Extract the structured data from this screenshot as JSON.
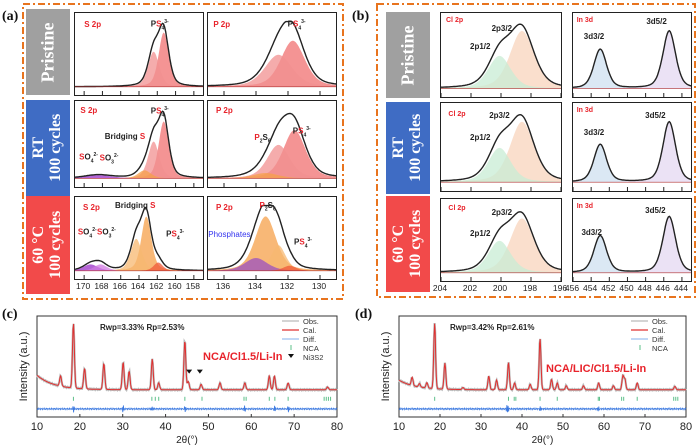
{
  "panels": {
    "a": {
      "letter": "(a)"
    },
    "b": {
      "letter": "(b)"
    },
    "c": {
      "letter": "(c)"
    },
    "d": {
      "letter": "(d)"
    }
  },
  "row_labels": [
    {
      "line1": "Pristine",
      "line2": "",
      "color": "#a0a0a0"
    },
    {
      "line1": "RT",
      "line2": "100 cycles",
      "color": "#3f6cc4"
    },
    {
      "line1": "60 °C",
      "line2": "100 cycles",
      "color": "#f24a4a"
    }
  ],
  "colors": {
    "accent_dash": "#e8741e",
    "label_red": "#e8232b",
    "phosphate_blue": "#3333ee"
  },
  "chart_data": [
    {
      "type": "area",
      "id": "a-s2p",
      "title": "S 2p XPS (panel a, left column)",
      "xlabel": "",
      "ylabel": "",
      "xlim": [
        171,
        157
      ],
      "x_ticks": [
        170,
        168,
        166,
        164,
        162,
        160,
        158
      ],
      "rows": [
        {
          "row": "Pristine",
          "element_label": "S 2p",
          "annotations": [
            "PS4 3-"
          ],
          "peaks": [
            {
              "name": "PS4 3- 2p3/2",
              "center": 161.3,
              "height": 0.85,
              "width": 0.55,
              "color": "#f07070"
            },
            {
              "name": "PS4 3- 2p1/2",
              "center": 162.4,
              "height": 0.55,
              "width": 0.6,
              "color": "#f29090"
            }
          ]
        },
        {
          "row": "RT 100 cycles",
          "element_label": "S 2p",
          "annotations": [
            "PS4 3-",
            "Bridging S",
            "SO4 2-",
            "SO3 2-"
          ],
          "peaks": [
            {
              "name": "PS4 3- 2p3/2",
              "center": 161.3,
              "height": 0.85,
              "width": 0.55,
              "color": "#f07070"
            },
            {
              "name": "PS4 3- 2p1/2",
              "center": 162.4,
              "height": 0.55,
              "width": 0.6,
              "color": "#f29090"
            },
            {
              "name": "Bridging S",
              "center": 163.4,
              "height": 0.12,
              "width": 0.7,
              "color": "#f5a04a"
            },
            {
              "name": "SO4/SO3",
              "center": 168.5,
              "height": 0.05,
              "width": 1.5,
              "color": "#9b30c8"
            }
          ]
        },
        {
          "row": "60 °C 100 cycles",
          "element_label": "S 2p",
          "annotations": [
            "Bridging S",
            "PS4 3-",
            "SO4 2-",
            "SO3 2-"
          ],
          "peaks": [
            {
              "name": "Bridging S 2p3/2",
              "center": 163.2,
              "height": 0.85,
              "width": 0.55,
              "color": "#f5a04a"
            },
            {
              "name": "Bridging S 2p1/2",
              "center": 164.3,
              "height": 0.5,
              "width": 0.6,
              "color": "#f7b870"
            },
            {
              "name": "PS4 3-",
              "center": 161.9,
              "height": 0.13,
              "width": 0.5,
              "color": "#f05a3a"
            },
            {
              "name": "SO4 2-",
              "center": 169.3,
              "height": 0.1,
              "width": 0.8,
              "color": "#9b30c8"
            },
            {
              "name": "SO3 2-",
              "center": 168.2,
              "height": 0.1,
              "width": 0.7,
              "color": "#d07ae0"
            }
          ]
        }
      ]
    },
    {
      "type": "area",
      "id": "a-p2p",
      "title": "P 2p XPS (panel a, right column)",
      "xlim": [
        137,
        129
      ],
      "x_ticks": [
        136,
        134,
        132,
        130
      ],
      "rows": [
        {
          "row": "Pristine",
          "element_label": "P 2p",
          "annotations": [
            "PS4 3-"
          ],
          "peaks": [
            {
              "name": "PS4 3- 2p3/2",
              "center": 131.7,
              "height": 0.72,
              "width": 0.75,
              "color": "#f07070"
            },
            {
              "name": "PS4 3- 2p1/2",
              "center": 132.6,
              "height": 0.5,
              "width": 0.85,
              "color": "#f29090"
            }
          ]
        },
        {
          "row": "RT 100 cycles",
          "element_label": "P 2p",
          "annotations": [
            "PS4 3-",
            "P2S6"
          ],
          "peaks": [
            {
              "name": "PS4 3- 2p3/2",
              "center": 131.6,
              "height": 0.72,
              "width": 0.7,
              "color": "#f07070"
            },
            {
              "name": "PS4 3- 2p1/2",
              "center": 132.6,
              "height": 0.5,
              "width": 0.7,
              "color": "#f29090"
            },
            {
              "name": "P2S6",
              "center": 133.4,
              "height": 0.08,
              "width": 0.8,
              "color": "#f5a04a"
            }
          ]
        },
        {
          "row": "60 °C 100 cycles",
          "element_label": "P 2p",
          "annotations": [
            "P2S6",
            "Phosphates",
            "PS4 3-"
          ],
          "peaks": [
            {
              "name": "P2S6 2p3/2",
              "center": 133.4,
              "height": 0.85,
              "width": 0.65,
              "color": "#f5a04a"
            },
            {
              "name": "P2S6 2p1/2",
              "center": 132.6,
              "height": 0.4,
              "width": 0.45,
              "color": "#f7b870"
            },
            {
              "name": "Phosphates",
              "center": 134.0,
              "height": 0.2,
              "width": 0.7,
              "color": "#9b50c0"
            },
            {
              "name": "PS4 3-",
              "center": 131.9,
              "height": 0.08,
              "width": 0.4,
              "color": "#f05a3a"
            }
          ]
        }
      ]
    },
    {
      "type": "area",
      "id": "b-cl2p",
      "title": "Cl 2p XPS (panel b, left column)",
      "xlim": [
        204,
        196
      ],
      "x_ticks": [
        204,
        202,
        200,
        198,
        196
      ],
      "rows": [
        {
          "row": "Pristine",
          "element_label": "Cl 2p",
          "annotations": [
            "2p3/2",
            "2p1/2"
          ],
          "peaks": [
            {
              "name": "2p3/2",
              "center": 198.6,
              "height": 0.88,
              "width": 0.8,
              "color": "#f8d4bc"
            },
            {
              "name": "2p1/2",
              "center": 200.1,
              "height": 0.5,
              "width": 0.75,
              "color": "#c8ecd4"
            }
          ]
        },
        {
          "row": "RT 100 cycles",
          "element_label": "Cl 2p",
          "annotations": [
            "2p3/2",
            "2p1/2"
          ],
          "peaks": [
            {
              "name": "2p3/2",
              "center": 198.6,
              "height": 0.88,
              "width": 0.8,
              "color": "#f8d4bc"
            },
            {
              "name": "2p1/2",
              "center": 200.1,
              "height": 0.5,
              "width": 0.75,
              "color": "#c8ecd4"
            }
          ]
        },
        {
          "row": "60 °C 100 cycles",
          "element_label": "Cl 2p",
          "annotations": [
            "2p3/2",
            "2p1/2"
          ],
          "peaks": [
            {
              "name": "2p3/2",
              "center": 198.6,
              "height": 0.85,
              "width": 0.8,
              "color": "#f8d4bc"
            },
            {
              "name": "2p1/2",
              "center": 200.1,
              "height": 0.5,
              "width": 0.75,
              "color": "#c8ecd4"
            }
          ]
        }
      ]
    },
    {
      "type": "area",
      "id": "b-in3d",
      "title": "In 3d XPS (panel b, right column)",
      "xlim": [
        456,
        443
      ],
      "x_ticks": [
        456,
        454,
        452,
        450,
        448,
        446,
        444
      ],
      "rows": [
        {
          "row": "Pristine",
          "element_label": "In 3d",
          "annotations": [
            "3d5/2",
            "3d3/2"
          ],
          "peaks": [
            {
              "name": "3d3/2",
              "center": 453.0,
              "height": 0.6,
              "width": 0.7,
              "color": "#cfe0f0"
            },
            {
              "name": "3d5/2",
              "center": 445.4,
              "height": 0.88,
              "width": 0.7,
              "color": "#e4d8f2"
            }
          ]
        },
        {
          "row": "RT 100 cycles",
          "element_label": "In 3d",
          "annotations": [
            "3d5/2",
            "3d3/2"
          ],
          "peaks": [
            {
              "name": "3d3/2",
              "center": 453.0,
              "height": 0.55,
              "width": 0.7,
              "color": "#cfe0f0"
            },
            {
              "name": "3d5/2",
              "center": 445.4,
              "height": 0.88,
              "width": 0.7,
              "color": "#e4d8f2"
            }
          ]
        },
        {
          "row": "60 °C 100 cycles",
          "element_label": "In 3d",
          "annotations": [
            "3d5/2",
            "3d3/2"
          ],
          "peaks": [
            {
              "name": "3d3/2",
              "center": 453.0,
              "height": 0.58,
              "width": 0.7,
              "color": "#cfe0f0"
            },
            {
              "name": "3d5/2",
              "center": 445.4,
              "height": 0.88,
              "width": 0.7,
              "color": "#e4d8f2"
            }
          ]
        }
      ]
    },
    {
      "type": "line",
      "id": "c-xrd",
      "title": "NCA/Cl1.5/Li-In",
      "xlabel": "2θ(°)",
      "ylabel": "Intensity (a.u.)",
      "xlim": [
        10,
        80
      ],
      "x_ticks": [
        10,
        20,
        30,
        40,
        50,
        60,
        70,
        80
      ],
      "fit_stats": {
        "Rwp": "3.33%",
        "Rp": "2.53%"
      },
      "legend": [
        "Obs.",
        "Cal.",
        "Diff.",
        "NCA",
        "Ni3S2"
      ],
      "legend_placement": "top-right",
      "background": {
        "start": 0.42,
        "end": 0.05
      },
      "peaks": [
        {
          "x": 15.5,
          "h": 0.15
        },
        {
          "x": 18.5,
          "h": 0.95
        },
        {
          "x": 21.1,
          "h": 0.3
        },
        {
          "x": 25.6,
          "h": 0.38
        },
        {
          "x": 30.1,
          "h": 0.4
        },
        {
          "x": 31.5,
          "h": 0.27
        },
        {
          "x": 36.9,
          "h": 0.45
        },
        {
          "x": 38.4,
          "h": 0.1
        },
        {
          "x": 44.5,
          "h": 0.72
        },
        {
          "x": 45.3,
          "h": 0.12
        },
        {
          "x": 48.3,
          "h": 0.08
        },
        {
          "x": 52.7,
          "h": 0.1
        },
        {
          "x": 58.5,
          "h": 0.1
        },
        {
          "x": 64.2,
          "h": 0.2
        },
        {
          "x": 65.4,
          "h": 0.2
        },
        {
          "x": 68.6,
          "h": 0.1
        },
        {
          "x": 77.8,
          "h": 0.04
        }
      ],
      "nca_ticks": [
        18.5,
        36.8,
        37.6,
        38.4,
        44.5,
        48.5,
        58.3,
        58.8,
        64.2,
        65.5,
        68.6,
        77.0,
        77.5,
        78.0,
        78.5
      ],
      "marker_peaks": [
        45.5,
        48.0
      ],
      "diff_spikes": [
        18.5,
        30.1,
        36.9,
        44.5,
        58.5,
        65.4,
        68.6
      ]
    },
    {
      "type": "line",
      "id": "d-xrd",
      "title": "NCA/LIC/Cl1.5/Li-In",
      "xlabel": "2θ(°)",
      "ylabel": "Intensity (a.u.)",
      "xlim": [
        10,
        80
      ],
      "x_ticks": [
        10,
        20,
        30,
        40,
        50,
        60,
        70,
        80
      ],
      "fit_stats": {
        "Rwp": "3.42%",
        "Rp": "2.61%"
      },
      "legend": [
        "Obs.",
        "Cal.",
        "Diff.",
        "NCA"
      ],
      "legend_placement": "top-right",
      "background": {
        "start": 0.28,
        "end": 0.05
      },
      "peaks": [
        {
          "x": 13.2,
          "h": 0.12
        },
        {
          "x": 15.0,
          "h": 0.05
        },
        {
          "x": 16.8,
          "h": 0.08
        },
        {
          "x": 18.7,
          "h": 0.95
        },
        {
          "x": 21.2,
          "h": 0.38
        },
        {
          "x": 25.6,
          "h": 0.03
        },
        {
          "x": 31.9,
          "h": 0.2
        },
        {
          "x": 33.8,
          "h": 0.14
        },
        {
          "x": 36.7,
          "h": 0.4
        },
        {
          "x": 38.2,
          "h": 0.1
        },
        {
          "x": 42.0,
          "h": 0.08
        },
        {
          "x": 44.4,
          "h": 0.75
        },
        {
          "x": 47.2,
          "h": 0.15
        },
        {
          "x": 48.6,
          "h": 0.1
        },
        {
          "x": 50.8,
          "h": 0.06
        },
        {
          "x": 55.0,
          "h": 0.06
        },
        {
          "x": 58.7,
          "h": 0.1
        },
        {
          "x": 62.3,
          "h": 0.06
        },
        {
          "x": 64.6,
          "h": 0.2
        },
        {
          "x": 65.1,
          "h": 0.15
        },
        {
          "x": 68.1,
          "h": 0.1
        },
        {
          "x": 77.3,
          "h": 0.05
        }
      ],
      "nca_ticks": [
        18.7,
        36.7,
        38.1,
        38.5,
        44.4,
        48.6,
        58.6,
        58.9,
        64.3,
        64.8,
        68.1,
        77.0,
        77.5,
        78.0
      ],
      "marker_peaks": [],
      "diff_spikes": [
        36.3,
        36.7,
        44.4,
        58.7
      ]
    }
  ]
}
